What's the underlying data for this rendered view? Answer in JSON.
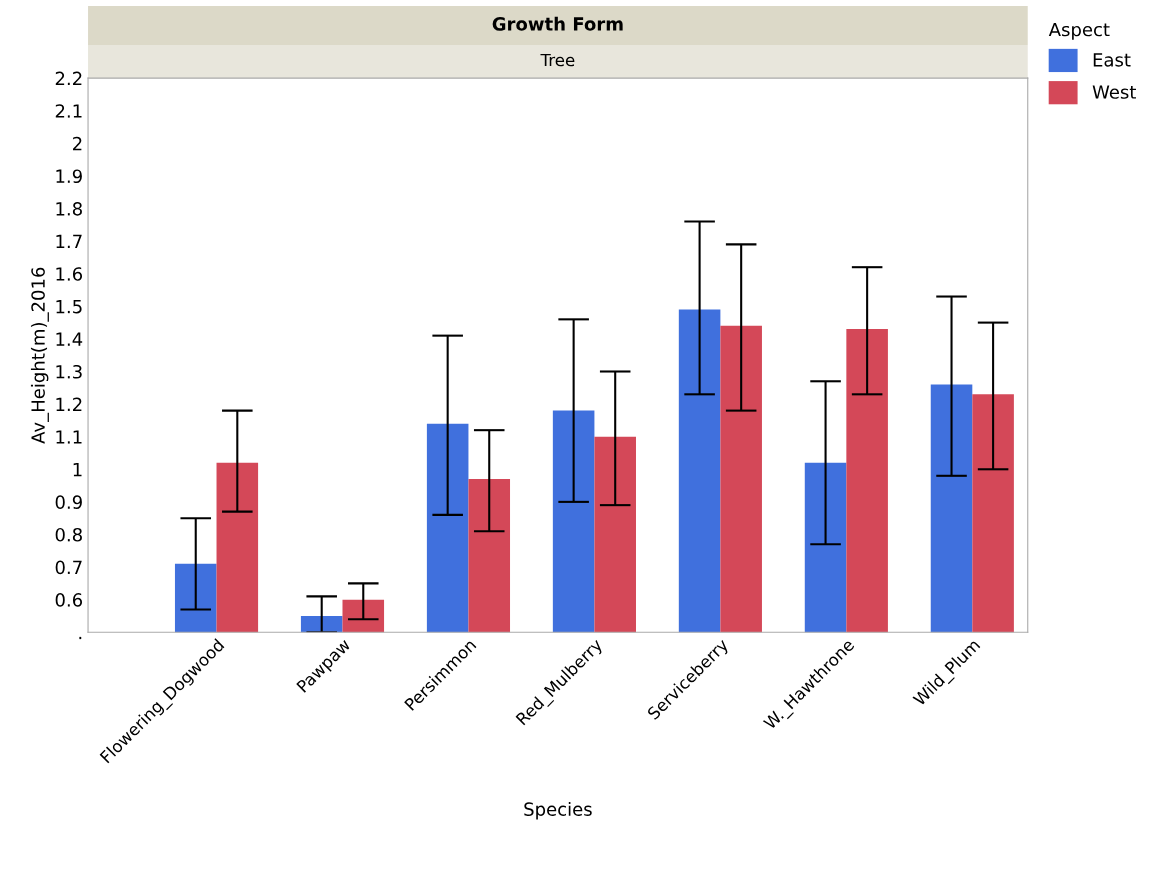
{
  "chart_data": {
    "type": "bar",
    "title": "Growth Form",
    "subtitle": "Tree",
    "xlabel": "Species",
    "ylabel": "Av_Height(m)_2016",
    "legend_title": "Aspect",
    "categories": [
      "Flowering_Dogwood",
      "Pawpaw",
      "Persimmon",
      "Red_Mulberry",
      "Serviceberry",
      "W._Hawthrone",
      "Wild_Plum"
    ],
    "series": [
      {
        "name": "East",
        "color": "#4070dd",
        "values": [
          0.71,
          0.55,
          1.14,
          1.18,
          1.49,
          1.02,
          1.26
        ],
        "errors": [
          [
            0.57,
            0.85
          ],
          [
            0.5,
            0.61
          ],
          [
            0.86,
            1.41
          ],
          [
            0.9,
            1.46
          ],
          [
            1.23,
            1.76
          ],
          [
            0.77,
            1.27
          ],
          [
            0.98,
            1.53
          ]
        ]
      },
      {
        "name": "West",
        "color": "#d44858",
        "values": [
          1.02,
          0.6,
          0.97,
          1.1,
          1.44,
          1.43,
          1.23
        ],
        "errors": [
          [
            0.87,
            1.18
          ],
          [
            0.54,
            0.65
          ],
          [
            0.81,
            1.12
          ],
          [
            0.89,
            1.3
          ],
          [
            1.18,
            1.69
          ],
          [
            1.23,
            1.62
          ],
          [
            1.0,
            1.45
          ]
        ]
      }
    ],
    "ylim": [
      0.5,
      2.2
    ],
    "yticks": [
      {
        "value": 0.5,
        "label": "."
      },
      0.6,
      0.7,
      0.8,
      0.9,
      1,
      1.1,
      1.2,
      1.3,
      1.4,
      1.5,
      1.6,
      1.7,
      1.8,
      1.9,
      2,
      2.1,
      2.2
    ],
    "grid": false,
    "legend": "top right"
  }
}
